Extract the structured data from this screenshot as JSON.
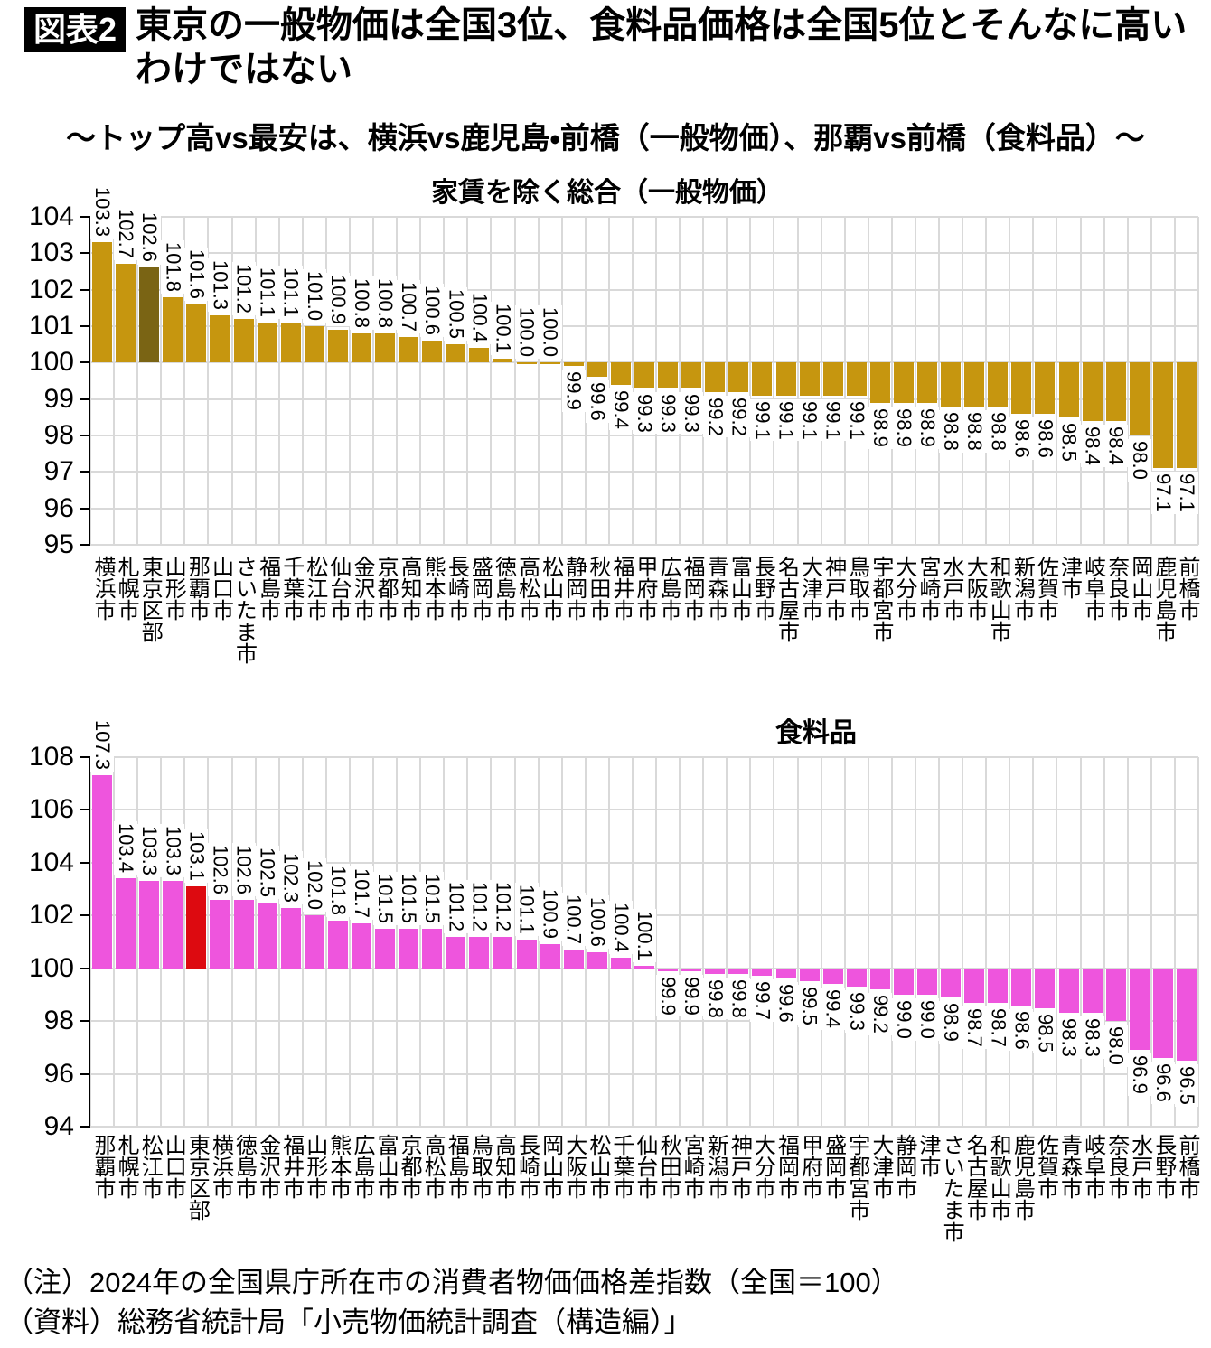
{
  "header": {
    "badge": "図表2",
    "title_line1": "東京の一般物価は全国3位、食料品価格は全国5位とそんなに高い",
    "title_line2": "わけではない",
    "subtitle": "～トップ高vs最安は、横浜vs鹿児島・前橋（一般物価）、那覇vs前橋（食料品）～"
  },
  "footer": {
    "note": "（注）2024年の全国県庁所在市の消費者物価価格差指数（全国＝100）",
    "source": "（資料）総務省統計局「小売物価統計調査（構造編）」"
  },
  "chart_data": [
    {
      "type": "bar",
      "title": "家賃を除く総合（一般物価）",
      "xlabel": "",
      "ylabel": "",
      "ylim": [
        95,
        104
      ],
      "ytick_step": 1,
      "baseline": 100,
      "grid": true,
      "legend": false,
      "bar_color": "#C6960F",
      "highlight_color": "#7A6414",
      "highlight_index": 2,
      "grid_color": "#D9D9D9",
      "axis_color": "#000000",
      "categories": [
        "横浜市",
        "札幌市",
        "東京区部",
        "山形市",
        "那覇市",
        "山口市",
        "さいたま市",
        "福島市",
        "千葉市",
        "松江市",
        "仙台市",
        "金沢市",
        "京都市",
        "高知市",
        "熊本市",
        "長崎市",
        "盛岡市",
        "徳島市",
        "高松市",
        "松山市",
        "静岡市",
        "秋田市",
        "福井市",
        "甲府市",
        "広島市",
        "福岡市",
        "青森市",
        "富山市",
        "長野市",
        "名古屋市",
        "大津市",
        "神戸市",
        "鳥取市",
        "宇都宮市",
        "大分市",
        "宮崎市",
        "水戸市",
        "大阪市",
        "和歌山市",
        "新潟市",
        "佐賀市",
        "津市",
        "岐阜市",
        "奈良市",
        "岡山市",
        "鹿児島市",
        "前橋市"
      ],
      "values": [
        103.3,
        102.7,
        102.6,
        101.8,
        101.6,
        101.3,
        101.2,
        101.1,
        101.1,
        101.0,
        100.9,
        100.8,
        100.8,
        100.7,
        100.6,
        100.5,
        100.4,
        100.1,
        100.0,
        100.0,
        99.9,
        99.6,
        99.4,
        99.3,
        99.3,
        99.3,
        99.2,
        99.2,
        99.1,
        99.1,
        99.1,
        99.1,
        99.1,
        98.9,
        98.9,
        98.9,
        98.8,
        98.8,
        98.8,
        98.6,
        98.6,
        98.5,
        98.4,
        98.4,
        98.0,
        97.1,
        97.1
      ]
    },
    {
      "type": "bar",
      "title": "食料品",
      "xlabel": "",
      "ylabel": "",
      "ylim": [
        94,
        108
      ],
      "ytick_step": 2,
      "baseline": 100,
      "grid": true,
      "legend": false,
      "bar_color": "#EE55DD",
      "highlight_color": "#DD0A10",
      "highlight_index": 4,
      "grid_color": "#D9D9D9",
      "axis_color": "#000000",
      "categories": [
        "那覇市",
        "札幌市",
        "松江市",
        "山口市",
        "東京区部",
        "横浜市",
        "徳島市",
        "金沢市",
        "福井市",
        "山形市",
        "熊本市",
        "広島市",
        "富山市",
        "京都市",
        "高松市",
        "福島市",
        "鳥取市",
        "高知市",
        "長崎市",
        "岡山市",
        "大阪市",
        "松山市",
        "千葉市",
        "仙台市",
        "秋田市",
        "宮崎市",
        "新潟市",
        "神戸市",
        "大分市",
        "福岡市",
        "甲府市",
        "盛岡市",
        "宇都宮市",
        "大津市",
        "静岡市",
        "津市",
        "さいたま市",
        "名古屋市",
        "和歌山市",
        "鹿児島市",
        "佐賀市",
        "青森市",
        "岐阜市",
        "奈良市",
        "水戸市",
        "長野市",
        "前橋市"
      ],
      "values": [
        107.3,
        103.4,
        103.3,
        103.3,
        103.1,
        102.6,
        102.6,
        102.5,
        102.3,
        102.0,
        101.8,
        101.7,
        101.5,
        101.5,
        101.5,
        101.2,
        101.2,
        101.2,
        101.1,
        100.9,
        100.7,
        100.6,
        100.4,
        100.1,
        99.9,
        99.9,
        99.8,
        99.8,
        99.7,
        99.6,
        99.5,
        99.4,
        99.3,
        99.2,
        99.0,
        99.0,
        98.9,
        98.7,
        98.7,
        98.6,
        98.5,
        98.3,
        98.3,
        98.0,
        96.9,
        96.6,
        96.5
      ]
    }
  ]
}
